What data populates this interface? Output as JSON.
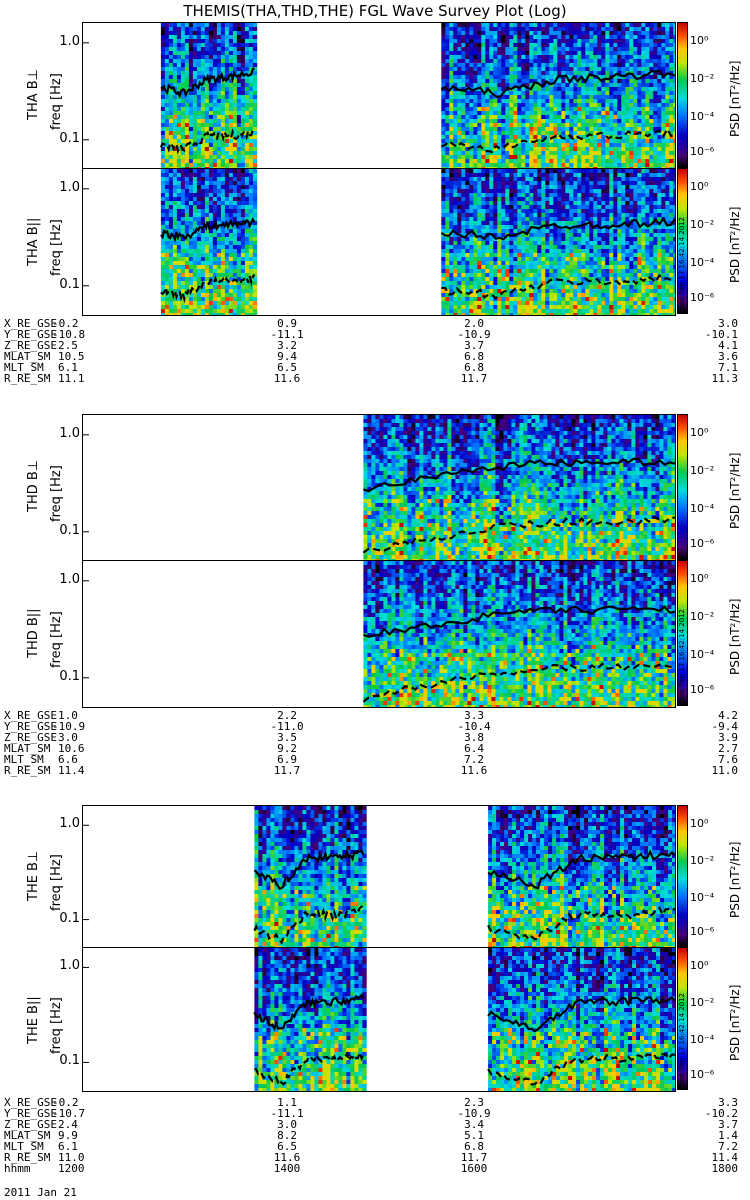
{
  "title": "THEMIS(THA,THD,THE) FGL Wave Survey Plot (Log)",
  "stamp": "Mon Sep 17 16:42:14 2012",
  "colorbar": {
    "label": "PSD [nT²/Hz]",
    "ticks": [
      "10⁰",
      "10⁻²",
      "10⁻⁴",
      "10⁻⁶"
    ]
  },
  "freq_ticks": [
    "1.0",
    "0.1"
  ],
  "panels": [
    {
      "id": "tha-bperp",
      "ylabel": "THA B⊥",
      "unit": "freq [Hz]"
    },
    {
      "id": "tha-bpar",
      "ylabel": "THA B||",
      "unit": "freq [Hz]"
    },
    {
      "id": "thd-bperp",
      "ylabel": "THD B⊥",
      "unit": "freq [Hz]"
    },
    {
      "id": "thd-bpar",
      "ylabel": "THD B||",
      "unit": "freq [Hz]"
    },
    {
      "id": "the-bperp",
      "ylabel": "THE B⊥",
      "unit": "freq [Hz]"
    },
    {
      "id": "the-bpar",
      "ylabel": "THE B||",
      "unit": "freq [Hz]"
    }
  ],
  "ephemeris": [
    {
      "probe": "THA",
      "rows": [
        {
          "label": "X_RE_GSE",
          "values": [
            "-0.2",
            "0.9",
            "2.0",
            "3.0"
          ]
        },
        {
          "label": "Y_RE_GSE",
          "values": [
            "-10.8",
            "-11.1",
            "-10.9",
            "-10.1"
          ]
        },
        {
          "label": "Z_RE_GSE",
          "values": [
            "2.5",
            "3.2",
            "3.7",
            "4.1"
          ]
        },
        {
          "label": "MLAT_SM",
          "values": [
            "10.5",
            "9.4",
            "6.8",
            "3.6"
          ]
        },
        {
          "label": "MLT_SM",
          "values": [
            "6.1",
            "6.5",
            "6.8",
            "7.1"
          ]
        },
        {
          "label": "R_RE_SM",
          "values": [
            "11.1",
            "11.6",
            "11.7",
            "11.3"
          ]
        }
      ]
    },
    {
      "probe": "THD",
      "rows": [
        {
          "label": "X_RE_GSE",
          "values": [
            "1.0",
            "2.2",
            "3.3",
            "4.2"
          ]
        },
        {
          "label": "Y_RE_GSE",
          "values": [
            "-10.9",
            "-11.0",
            "-10.4",
            "-9.4"
          ]
        },
        {
          "label": "Z_RE_GSE",
          "values": [
            "3.0",
            "3.5",
            "3.8",
            "3.9"
          ]
        },
        {
          "label": "MLAT_SM",
          "values": [
            "10.6",
            "9.2",
            "6.4",
            "2.7"
          ]
        },
        {
          "label": "MLT_SM",
          "values": [
            "6.6",
            "6.9",
            "7.2",
            "7.6"
          ]
        },
        {
          "label": "R_RE_SM",
          "values": [
            "11.4",
            "11.7",
            "11.6",
            "11.0"
          ]
        }
      ]
    },
    {
      "probe": "THE",
      "rows": [
        {
          "label": "X_RE_GSE",
          "values": [
            "-0.2",
            "1.1",
            "2.3",
            "3.3"
          ]
        },
        {
          "label": "Y_RE_GSE",
          "values": [
            "-10.7",
            "-11.1",
            "-10.9",
            "-10.2"
          ]
        },
        {
          "label": "Z_RE_GSE",
          "values": [
            "2.4",
            "3.0",
            "3.4",
            "3.7"
          ]
        },
        {
          "label": "MLAT_SM",
          "values": [
            "9.9",
            "8.2",
            "5.1",
            "1.4"
          ]
        },
        {
          "label": "MLT_SM",
          "values": [
            "6.1",
            "6.5",
            "6.8",
            "7.2"
          ]
        },
        {
          "label": "R_RE_SM",
          "values": [
            "11.0",
            "11.6",
            "11.7",
            "11.4"
          ]
        },
        {
          "label": "hhmm",
          "values": [
            "1200",
            "1400",
            "1600",
            "1800"
          ]
        }
      ]
    }
  ],
  "date": "2011 Jan 21",
  "chart_data": {
    "type": "heatmap",
    "title": "THEMIS(THA,THD,THE) FGL Wave Survey Plot (Log)",
    "x": [
      "1200",
      "1400",
      "1600",
      "1800"
    ],
    "xlabel": "hhmm",
    "ylabel": "freq [Hz]",
    "yscale": "log",
    "ylim": [
      0.05,
      1.6
    ],
    "colorscale": "rainbow",
    "zlabel": "PSD [nT²/Hz]",
    "zlim_log10": [
      -6,
      1
    ],
    "panels": [
      {
        "name": "THA B⊥",
        "data_intervals": [
          [
            1230,
            1330
          ],
          [
            1530,
            1800
          ]
        ],
        "upper_line_hz": [
          0.35,
          0.3,
          0.42,
          0.45,
          0.5
        ],
        "lower_line_hz": [
          0.09,
          0.08,
          0.11,
          0.11,
          0.12
        ]
      },
      {
        "name": "THA B||",
        "data_intervals": [
          [
            1230,
            1330
          ],
          [
            1530,
            1800
          ]
        ],
        "upper_line_hz": [
          0.35,
          0.32,
          0.42,
          0.43,
          0.46
        ],
        "lower_line_hz": [
          0.09,
          0.08,
          0.11,
          0.11,
          0.12
        ]
      },
      {
        "name": "THD B⊥",
        "data_intervals": [
          [
            1440,
            1800
          ]
        ],
        "upper_line_hz": [
          0.28,
          0.38,
          0.5,
          0.52,
          0.53
        ],
        "lower_line_hz": [
          0.06,
          0.09,
          0.12,
          0.13,
          0.13
        ]
      },
      {
        "name": "THD B||",
        "data_intervals": [
          [
            1440,
            1800
          ]
        ],
        "upper_line_hz": [
          0.27,
          0.36,
          0.48,
          0.5,
          0.51
        ],
        "lower_line_hz": [
          0.06,
          0.09,
          0.12,
          0.13,
          0.13
        ]
      },
      {
        "name": "THE B⊥",
        "data_intervals": [
          [
            1330,
            1440
          ],
          [
            1600,
            1800
          ]
        ],
        "upper_line_hz": [
          0.33,
          0.22,
          0.45,
          0.46,
          0.5
        ],
        "lower_line_hz": [
          0.08,
          0.06,
          0.12,
          0.11,
          0.13
        ]
      },
      {
        "name": "THE B||",
        "data_intervals": [
          [
            1330,
            1440
          ],
          [
            1600,
            1800
          ]
        ],
        "upper_line_hz": [
          0.32,
          0.22,
          0.43,
          0.44,
          0.47
        ],
        "lower_line_hz": [
          0.08,
          0.06,
          0.11,
          0.11,
          0.12
        ]
      }
    ]
  }
}
